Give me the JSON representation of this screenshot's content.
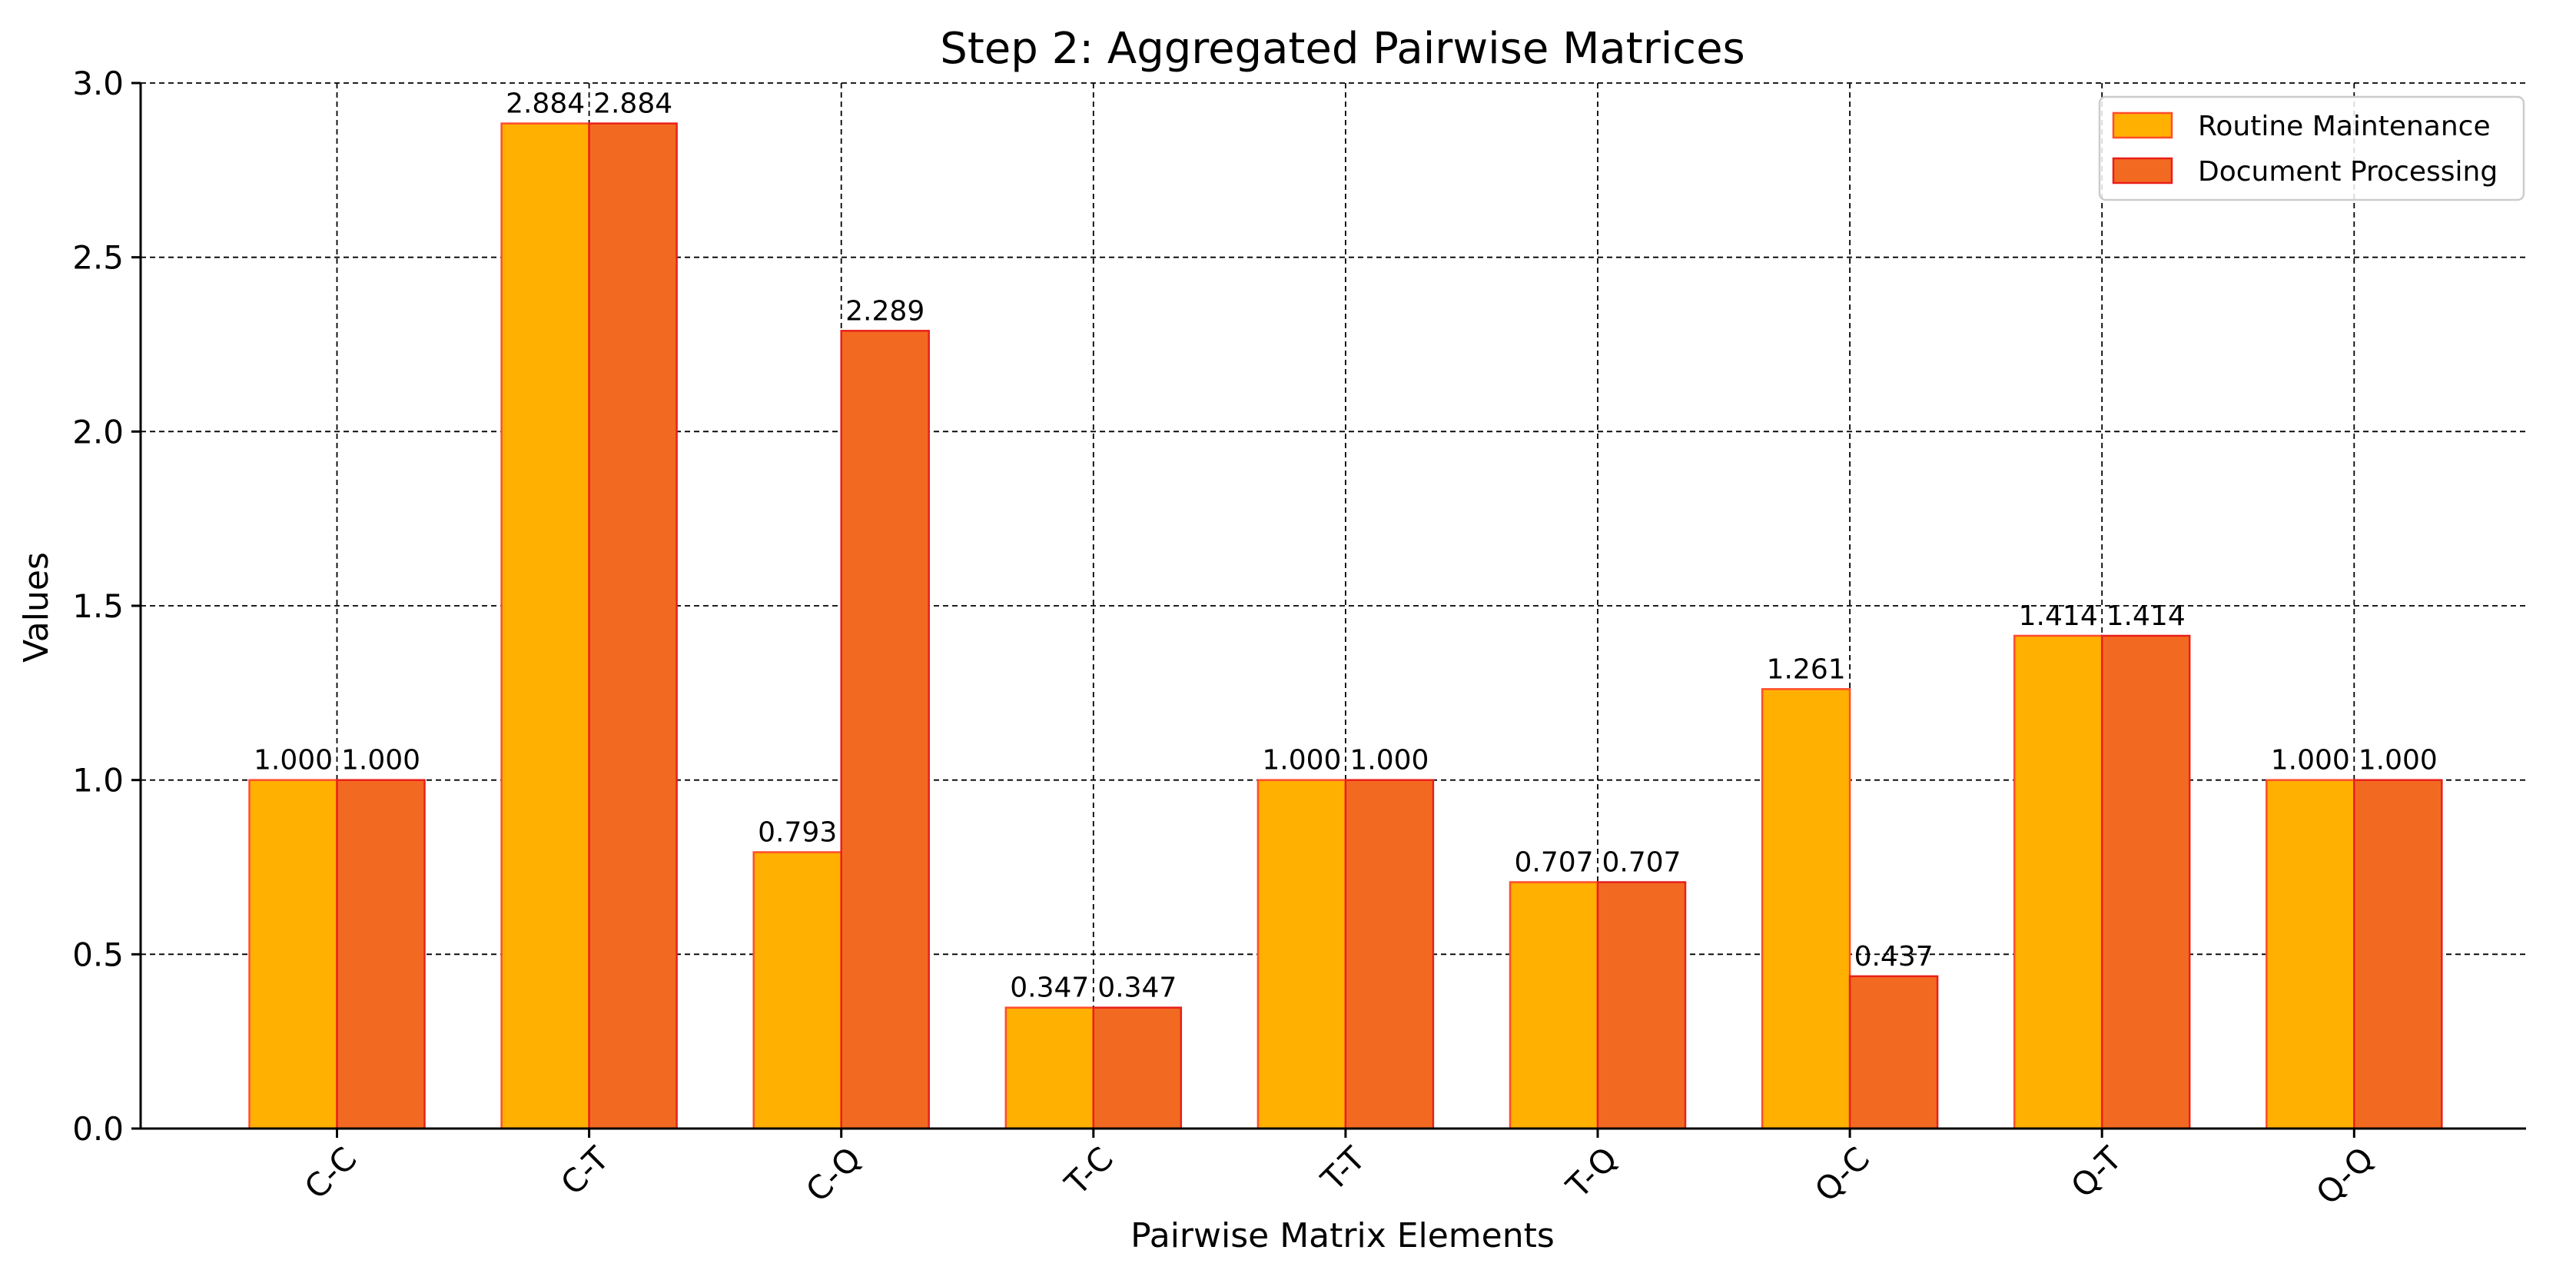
{
  "chart_data": {
    "type": "bar",
    "title": "Step 2: Aggregated Pairwise Matrices",
    "xlabel": "Pairwise Matrix Elements",
    "ylabel": "Values",
    "categories": [
      "C-C",
      "C-T",
      "C-Q",
      "T-C",
      "T-T",
      "T-Q",
      "Q-C",
      "Q-T",
      "Q-Q"
    ],
    "series": [
      {
        "name": "Routine Maintenance",
        "color": "#FFB000",
        "edge_color": "#FF4D2E",
        "values": [
          1.0,
          2.884,
          0.793,
          0.347,
          1.0,
          0.707,
          1.261,
          1.414,
          1.0
        ],
        "labels": [
          "1.000",
          "2.884",
          "0.793",
          "0.347",
          "1.000",
          "0.707",
          "1.261",
          "1.414",
          "1.000"
        ]
      },
      {
        "name": "Document Processing",
        "color": "#F26A21",
        "edge_color": "#E8201A",
        "values": [
          1.0,
          2.884,
          2.289,
          0.347,
          1.0,
          0.707,
          0.437,
          1.414,
          1.0
        ],
        "labels": [
          "1.000",
          "2.884",
          "2.289",
          "0.347",
          "1.000",
          "0.707",
          "0.437",
          "1.414",
          "1.000"
        ]
      }
    ],
    "ylim": [
      0,
      3.0
    ],
    "yticks": [
      0.0,
      0.5,
      1.0,
      1.5,
      2.0,
      2.5,
      3.0
    ],
    "ytick_labels": [
      "0.0",
      "0.5",
      "1.0",
      "1.5",
      "2.0",
      "2.5",
      "3.0"
    ],
    "xtick_rotation_deg": 45,
    "grid": true,
    "legend_position": "top-right"
  }
}
